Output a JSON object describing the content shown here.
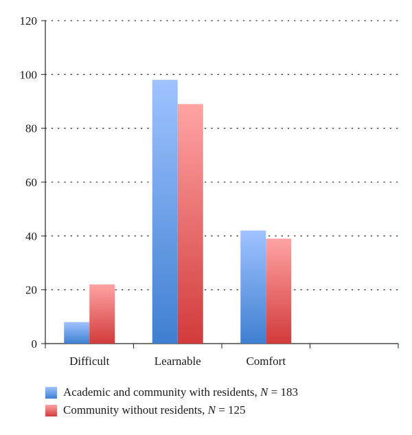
{
  "chart_data": {
    "type": "bar",
    "categories": [
      "Difficult",
      "Learnable",
      "Comfort",
      ""
    ],
    "series": [
      {
        "name": "Academic and community with residents, N = 183",
        "name_prefix": "Academic and community with residents, ",
        "name_italic": "N",
        "name_suffix": " = 183",
        "values": [
          8,
          98,
          42,
          null
        ],
        "color_top": "#9fc3ff",
        "color_bottom": "#3f7fd1"
      },
      {
        "name": "Community without residents, N = 125",
        "name_prefix": "Community without residents, ",
        "name_italic": "N",
        "name_suffix": " = 125",
        "values": [
          22,
          89,
          39,
          null
        ],
        "color_top": "#ffa3a3",
        "color_bottom": "#d23b3b"
      }
    ],
    "yticks": [
      "0",
      "20",
      "40",
      "60",
      "80",
      "100",
      "120"
    ],
    "ylim": [
      0,
      120
    ],
    "grid": true,
    "legend_position": "bottom-left",
    "title": "",
    "xlabel": "",
    "ylabel": ""
  }
}
